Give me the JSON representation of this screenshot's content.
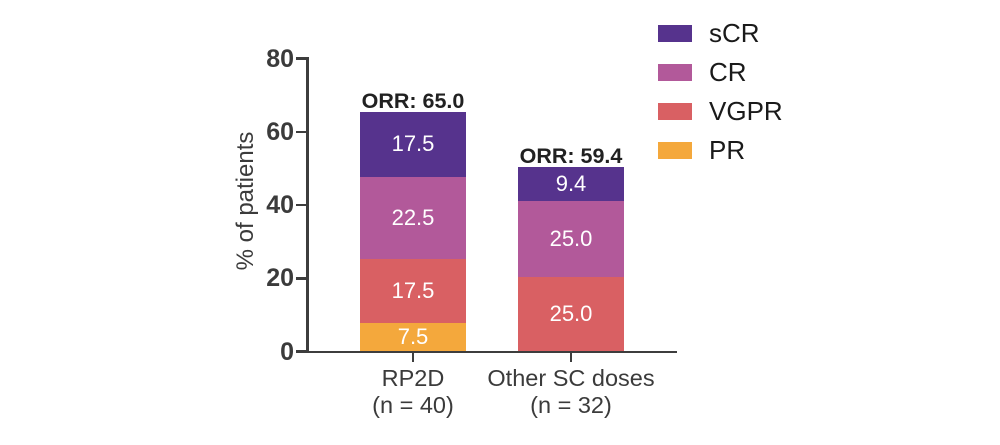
{
  "chart_data": {
    "type": "bar",
    "subtype": "stacked-vertical",
    "title": "",
    "xlabel": "",
    "ylabel": "% of patients",
    "ylim": [
      0,
      80
    ],
    "yticks": [
      0,
      20,
      40,
      60,
      80
    ],
    "grid": false,
    "legend_position": "top-right",
    "legend": [
      {
        "label": "sCR",
        "color": "#56338D"
      },
      {
        "label": "CR",
        "color": "#B2599A"
      },
      {
        "label": "VGPR",
        "color": "#D96063"
      },
      {
        "label": "PR",
        "color": "#F4A83C"
      }
    ],
    "categories": [
      {
        "label": "RP2D",
        "sublabel": "(n = 40)"
      },
      {
        "label": "Other SC doses",
        "sublabel": "(n = 32)"
      }
    ],
    "series": [
      {
        "name": "PR",
        "color": "#F4A83C",
        "values": [
          7.5,
          null
        ],
        "labels": [
          "7.5",
          ""
        ],
        "drawn_heights": [
          7.5,
          0
        ]
      },
      {
        "name": "VGPR",
        "color": "#D96063",
        "values": [
          17.5,
          25.0
        ],
        "labels": [
          "17.5",
          "25.0"
        ],
        "drawn_heights": [
          17.5,
          20.0
        ]
      },
      {
        "name": "CR",
        "color": "#B2599A",
        "values": [
          22.5,
          25.0
        ],
        "labels": [
          "22.5",
          "25.0"
        ],
        "drawn_heights": [
          22.5,
          20.7
        ]
      },
      {
        "name": "sCR",
        "color": "#56338D",
        "values": [
          17.5,
          9.4
        ],
        "labels": [
          "17.5",
          "9.4"
        ],
        "drawn_heights": [
          17.5,
          9.3
        ]
      }
    ],
    "annotations": [
      {
        "text": "ORR: 65.0",
        "bar": 0,
        "orr_value": 65.0
      },
      {
        "text": "ORR: 59.4",
        "bar": 1,
        "orr_value": 59.4
      }
    ]
  },
  "colors": {
    "axis": "#3d3d3d",
    "tick_text": "#3b3b3b",
    "annotation_text": "#212121",
    "segment_text": "#ffffff",
    "background": "#ffffff"
  }
}
